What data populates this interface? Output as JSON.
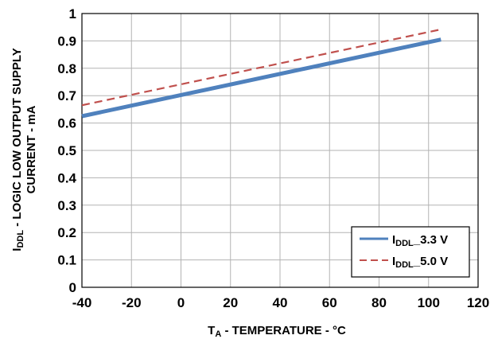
{
  "chart_data": {
    "type": "line",
    "xlabel": {
      "main": "T",
      "sub": "A",
      "rest": " - TEMPERATURE - °C"
    },
    "ylabel": {
      "line1_main": "I",
      "line1_sub": "DDL",
      "line1_rest": " - LOGIC LOW OUTPUT SUPPLY",
      "line2": "CURRENT - mA"
    },
    "xlim": [
      -40,
      120
    ],
    "ylim": [
      0,
      1
    ],
    "xticks": [
      "-40",
      "-20",
      "0",
      "20",
      "40",
      "60",
      "80",
      "100",
      "120"
    ],
    "yticks": [
      "0",
      "0.1",
      "0.2",
      "0.3",
      "0.4",
      "0.5",
      "0.6",
      "0.7",
      "0.8",
      "0.9",
      "1"
    ],
    "grid": true,
    "legend_position": "bottom-right",
    "series": [
      {
        "name_main": "I",
        "name_sub": "DDL",
        "name_rest": "_3.3 V",
        "color": "#4f81bd",
        "style": "solid",
        "x": [
          -40,
          105
        ],
        "y": [
          0.625,
          0.905
        ]
      },
      {
        "name_main": "I",
        "name_sub": "DDL",
        "name_rest": "_5.0 V",
        "color": "#c0504d",
        "style": "dashed",
        "x": [
          -40,
          105
        ],
        "y": [
          0.665,
          0.942
        ]
      }
    ]
  }
}
